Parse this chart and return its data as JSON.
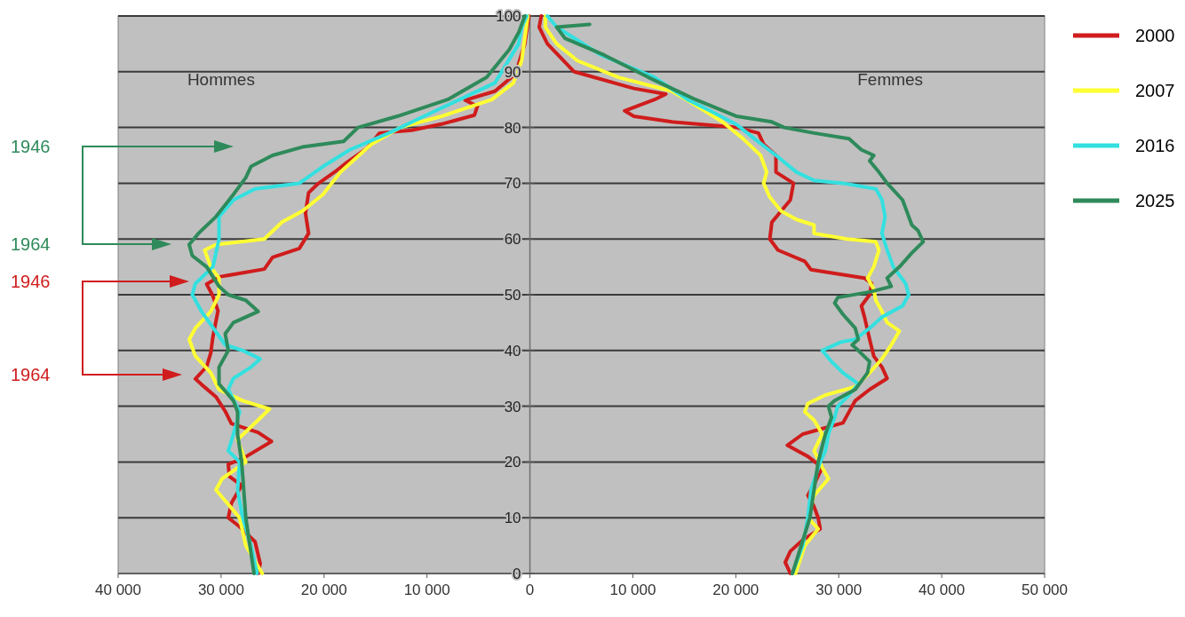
{
  "chart_data": {
    "type": "line",
    "xlim": [
      -40000,
      50000
    ],
    "xticks": [
      {
        "value": -40000,
        "label": "40 000"
      },
      {
        "value": -30000,
        "label": "30 000"
      },
      {
        "value": -20000,
        "label": "20 000"
      },
      {
        "value": -10000,
        "label": "10 000"
      },
      0,
      {
        "value": 10000,
        "label": "10 000"
      },
      {
        "value": 20000,
        "label": "20 000"
      },
      {
        "value": 30000,
        "label": "30 000"
      },
      {
        "value": 40000,
        "label": "40 000"
      },
      {
        "value": 50000,
        "label": "50 000"
      }
    ],
    "ylim": [
      0,
      100
    ],
    "yticks": [
      0,
      10,
      20,
      30,
      40,
      50,
      60,
      70,
      80,
      90,
      100
    ],
    "grid": "y",
    "legend": "top right",
    "line_style": "solid",
    "marker": "none",
    "annotations": [
      "Hommes",
      "Femmes",
      "1946",
      "1964",
      "1946",
      "1964"
    ],
    "series": [
      {
        "name": "2000",
        "color": "#d01c1c",
        "x": [
          -26400,
          -26200,
          -26700,
          -28200,
          -29300,
          -29000,
          -28000,
          -29200,
          -29300,
          -27900,
          -25100,
          -26400,
          -29000,
          -29600,
          -30500,
          -31900,
          -32500,
          -31400,
          -31000,
          -30800,
          -30300,
          -30800,
          -31400,
          -30200,
          -25800,
          -25000,
          -22400,
          -21500,
          -21800,
          -21500,
          -20600,
          -18900,
          -17800,
          -15800,
          -14600,
          -11500,
          -8600,
          -5400,
          -5100,
          -6300,
          -3400,
          -1400,
          -500,
          -100
        ],
        "values": [
          0,
          1.8,
          5.7,
          8.4,
          10,
          12.6,
          15.8,
          17.4,
          19.6,
          20.6,
          23.7,
          25.3,
          26.9,
          29.1,
          31.7,
          33.9,
          34.9,
          37.1,
          39.6,
          42.4,
          47.1,
          49.8,
          51.9,
          53.2,
          54.6,
          56.7,
          58.3,
          61,
          64.6,
          68.3,
          69.9,
          72.1,
          73.7,
          76.3,
          79,
          79.5,
          80.6,
          82.2,
          83.8,
          84.9,
          86.5,
          89.6,
          95,
          100
        ]
      },
      {
        "name": "2007",
        "color": "#ffff33",
        "x": [
          -26000,
          -27600,
          -28200,
          -30500,
          -29900,
          -27600,
          -28400,
          -26700,
          -25300,
          -27900,
          -30200,
          -31000,
          -32500,
          -33100,
          -32500,
          -31000,
          -30200,
          -30200,
          -31000,
          -31600,
          -30500,
          -25800,
          -24100,
          -22100,
          -20100,
          -18400,
          -15400,
          -12600,
          -8600,
          -3700,
          -1600,
          -800,
          -200
        ],
        "values": [
          0,
          5,
          10,
          15,
          17,
          20,
          24,
          27,
          29.5,
          31,
          33,
          36,
          39,
          42,
          44,
          47,
          50,
          53,
          55,
          58,
          59,
          60,
          63,
          65,
          68,
          72,
          77,
          80,
          82,
          85,
          88,
          92,
          100
        ]
      },
      {
        "name": "2016",
        "color": "#33e0e0",
        "x": [
          -26500,
          -27100,
          -27900,
          -28400,
          -28200,
          -29300,
          -28800,
          -28200,
          -29300,
          -28800,
          -27100,
          -26200,
          -27900,
          -29600,
          -31900,
          -32800,
          -32500,
          -30800,
          -30200,
          -30200,
          -28800,
          -26700,
          -22400,
          -20100,
          -17500,
          -13700,
          -10300,
          -3400,
          -1100,
          -800,
          -300
        ],
        "values": [
          0,
          5,
          10,
          15,
          20,
          22,
          25,
          29,
          33,
          35,
          37,
          38.5,
          40,
          41,
          47,
          50,
          52,
          55,
          60,
          64,
          67,
          69,
          70,
          73,
          76,
          79,
          82,
          88,
          95,
          98,
          100
        ]
      },
      {
        "name": "2025",
        "color": "#2e8a5a",
        "x": [
          -26800,
          -27600,
          -28000,
          -28400,
          -28400,
          -28800,
          -30200,
          -30200,
          -29300,
          -29600,
          -28800,
          -26400,
          -27600,
          -29300,
          -30200,
          -31400,
          -32800,
          -33100,
          -32200,
          -30500,
          -28800,
          -27600,
          -27100,
          -25000,
          -22100,
          -18100,
          -16700,
          -12900,
          -8000,
          -4200,
          -2000,
          -1100,
          -500
        ],
        "values": [
          0,
          10,
          20,
          25,
          29,
          31,
          34,
          37,
          40,
          43,
          45,
          47,
          49,
          50,
          51.5,
          55,
          57,
          59,
          61,
          64,
          68,
          71,
          73,
          75,
          76.5,
          77.5,
          80,
          82,
          85,
          89,
          94,
          97,
          100
        ]
      },
      {
        "color": "#d01c1c",
        "x": [
          25300,
          24800,
          25300,
          26500,
          28200,
          28000,
          27600,
          27000,
          27600,
          28400,
          27000,
          25000,
          26500,
          30400,
          31000,
          31600,
          33000,
          34700,
          34200,
          33400,
          33000,
          32500,
          32200,
          33000,
          33200,
          32500,
          27300,
          26700,
          24100,
          23300,
          23500,
          24400,
          25300,
          25600,
          23900,
          23900,
          22700,
          22200,
          20100,
          13800,
          10100,
          9200,
          12100,
          13200,
          10100,
          4300,
          1700,
          900,
          1100
        ],
        "values": [
          0,
          2,
          4,
          6,
          8,
          10,
          12,
          14,
          16,
          19,
          21,
          23,
          25,
          27,
          29,
          31,
          33,
          35,
          37,
          39,
          42,
          46,
          48,
          50,
          52,
          53,
          54.5,
          56,
          58,
          60,
          63,
          65,
          67,
          70,
          72,
          75,
          77,
          79,
          80,
          81,
          82,
          83,
          85,
          86,
          87,
          90,
          95,
          98,
          100
        ]
      },
      {
        "color": "#ffff33",
        "x": [
          25800,
          26700,
          28000,
          27000,
          27600,
          29000,
          28400,
          27600,
          28400,
          27600,
          26700,
          27000,
          28700,
          31600,
          33000,
          34200,
          35100,
          35900,
          34700,
          34200,
          33600,
          33400,
          32800,
          33400,
          33900,
          33600,
          30800,
          27600,
          27600,
          25900,
          24400,
          23300,
          22700,
          23000,
          22400,
          20700,
          18700,
          16100,
          13800,
          8600,
          4600,
          2600,
          1500,
          1500
        ],
        "values": [
          0,
          5,
          8,
          10,
          14,
          17,
          19,
          22,
          25,
          27.5,
          29,
          30.5,
          32,
          33.5,
          36,
          38.5,
          41,
          43.5,
          45,
          47,
          49,
          51,
          53,
          55,
          58,
          59.5,
          60,
          61,
          62.5,
          63.5,
          65,
          67.5,
          70,
          72,
          75,
          78,
          81,
          84,
          86.5,
          89,
          92,
          95,
          98,
          100
        ]
      },
      {
        "color": "#33e0e0",
        "x": [
          25500,
          26500,
          27000,
          27300,
          28200,
          28700,
          29000,
          29600,
          29900,
          31000,
          31900,
          30400,
          29300,
          28400,
          30200,
          31600,
          33000,
          34200,
          36200,
          36800,
          36500,
          35300,
          34700,
          34200,
          34500,
          34200,
          33600,
          30400,
          27600,
          25900,
          23900,
          21800,
          20100,
          17500,
          15300,
          12100,
          6900,
          2600,
          1700
        ],
        "values": [
          0,
          5,
          10,
          15,
          20,
          22,
          25,
          28,
          30,
          32,
          34,
          36,
          38,
          40,
          41.5,
          42,
          44,
          46,
          48,
          50,
          52,
          55,
          58,
          61,
          64,
          67,
          69,
          70,
          70.5,
          72,
          75,
          78,
          80.5,
          83,
          85,
          89,
          93,
          98,
          100
        ]
      },
      {
        "color": "#2e8a5a",
        "x": [
          25500,
          27200,
          28000,
          28700,
          29300,
          29000,
          29600,
          31600,
          32800,
          33000,
          31900,
          31300,
          31900,
          31600,
          30400,
          29600,
          29900,
          33000,
          35100,
          34700,
          35900,
          37100,
          38200,
          37700,
          37100,
          36800,
          36200,
          34700,
          33900,
          33000,
          33400,
          32200,
          31000,
          27600,
          24700,
          23500,
          20100,
          16100,
          11500,
          7200,
          3400,
          2600,
          5800
        ],
        "values": [
          0,
          10,
          20,
          25,
          28,
          30,
          31,
          33,
          36,
          38,
          40,
          41,
          42,
          44,
          46.5,
          48.5,
          49.5,
          50.5,
          51.5,
          53,
          55,
          57.5,
          59.5,
          61.5,
          62.5,
          64,
          67,
          70,
          72,
          74,
          75,
          76,
          78,
          79,
          80,
          81,
          82,
          85,
          89,
          93,
          96,
          98,
          98.5
        ]
      }
    ]
  }
}
